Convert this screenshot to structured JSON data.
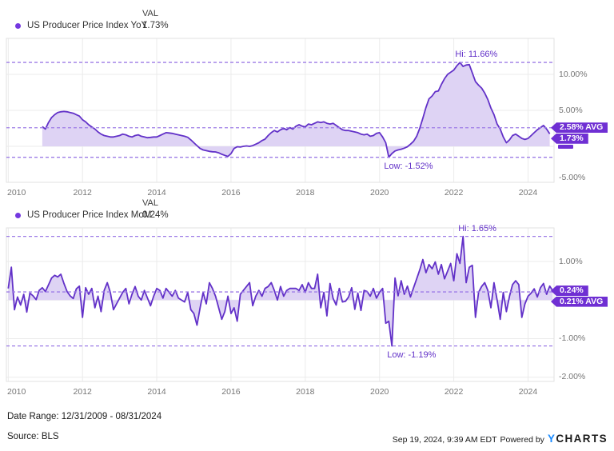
{
  "page": {
    "background": "#ffffff"
  },
  "colors": {
    "line": "#6231c8",
    "area_fill": "#ded3f4",
    "dashed": "#9d7ce6",
    "annotation_text": "#6231c8",
    "badge_bg": "#6f2fd3",
    "badge_text": "#ffffff",
    "dot": "#7438e0",
    "axis_text": "#757575",
    "grid": "#ebebeb",
    "plot_border": "#e2e2e2",
    "legend_text": "#333333",
    "footer_text": "#1a1a1a",
    "logo_y_color": "#1789ff",
    "logo_charts_color": "#1a1a1a"
  },
  "footer": {
    "date_range": "Date Range: 12/31/2009 - 08/31/2024",
    "source": "Source: BLS",
    "timestamp": "Sep 19, 2024, 9:39 AM EDT",
    "powered_by": "Powered by",
    "logo_y": "Y",
    "logo_rest": "CHARTS"
  },
  "chart_data": [
    {
      "type": "area",
      "series_name": "US Producer Price Index YoY",
      "legend": {
        "val_header": "VAL",
        "val_value": "1.73%"
      },
      "x_axis": {
        "unit": "year",
        "range": [
          2009.95,
          2024.7
        ],
        "ticks": [
          "2010",
          "2012",
          "2014",
          "2016",
          "2018",
          "2020",
          "2022",
          "2024"
        ],
        "tick_years": [
          2010,
          2012,
          2014,
          2016,
          2018,
          2020,
          2022,
          2024
        ]
      },
      "y_axis": {
        "range": [
          -5,
          15
        ],
        "gridlines": [
          10,
          5,
          0,
          -5
        ],
        "labels": [
          {
            "value": 10,
            "text": "10.00%"
          },
          {
            "value": 5,
            "text": "5.00%"
          },
          {
            "value": -5,
            "text": "-5.00%"
          }
        ]
      },
      "stats": {
        "hi": 11.66,
        "avg": 2.58,
        "low": -1.52
      },
      "annotations": {
        "hi": {
          "text": "Hi: 11.66%",
          "year": 2022.1667,
          "value": 11.66,
          "placement": "above"
        },
        "low": {
          "text": "Low: -1.52%",
          "year": 2020.25,
          "value": -1.52,
          "placement": "below"
        }
      },
      "badges": [
        {
          "text": "2.58% AVG",
          "anchor": 2.58
        },
        {
          "text": "1.73%"
        }
      ],
      "x_start_year": 2010.9167,
      "x_step_years": 0.083333,
      "values": [
        2.75,
        2.4,
        3.3,
        4.0,
        4.4,
        4.7,
        4.8,
        4.85,
        4.8,
        4.7,
        4.6,
        4.4,
        4.2,
        3.7,
        3.4,
        3.0,
        2.7,
        2.4,
        2.0,
        1.7,
        1.5,
        1.4,
        1.3,
        1.3,
        1.4,
        1.5,
        1.7,
        1.6,
        1.4,
        1.3,
        1.5,
        1.6,
        1.4,
        1.3,
        1.2,
        1.25,
        1.3,
        1.3,
        1.5,
        1.7,
        1.9,
        1.85,
        1.8,
        1.7,
        1.6,
        1.5,
        1.4,
        1.26,
        0.9,
        0.5,
        0.1,
        -0.3,
        -0.5,
        -0.6,
        -0.7,
        -0.75,
        -0.78,
        -0.9,
        -1.1,
        -1.26,
        -1.4,
        -1.0,
        -0.3,
        -0.05,
        -0.1,
        0.0,
        0.05,
        0.0,
        0.1,
        0.3,
        0.5,
        0.8,
        1.0,
        1.5,
        1.9,
        2.2,
        2.0,
        2.3,
        2.5,
        2.3,
        2.6,
        2.4,
        2.8,
        3.0,
        2.8,
        2.7,
        3.1,
        3.0,
        3.2,
        3.4,
        3.3,
        3.4,
        3.2,
        3.1,
        3.2,
        2.9,
        2.6,
        2.3,
        2.2,
        2.2,
        2.1,
        2.0,
        1.9,
        1.7,
        1.6,
        1.7,
        1.4,
        1.5,
        1.8,
        1.9,
        1.3,
        0.5,
        -1.52,
        -1.0,
        -0.65,
        -0.5,
        -0.4,
        -0.25,
        -0.05,
        0.3,
        0.7,
        1.4,
        2.5,
        3.9,
        5.4,
        6.6,
        7.0,
        7.6,
        7.7,
        8.6,
        9.4,
        10.0,
        10.3,
        10.6,
        11.2,
        11.66,
        11.1,
        11.3,
        11.35,
        10.2,
        9.0,
        8.5,
        8.1,
        7.4,
        6.5,
        5.3,
        4.4,
        3.1,
        2.4,
        1.3,
        0.5,
        0.9,
        1.5,
        1.7,
        1.4,
        1.1,
        0.95,
        1.1,
        1.5,
        1.9,
        2.3,
        2.6,
        2.9,
        2.4,
        1.73
      ]
    },
    {
      "type": "area",
      "series_name": "US Producer Price Index MoM",
      "legend": {
        "val_header": "VAL",
        "val_value": "0.24%"
      },
      "x_axis": {
        "unit": "year",
        "range": [
          2009.95,
          2024.7
        ],
        "ticks": [
          "2010",
          "2012",
          "2014",
          "2016",
          "2018",
          "2020",
          "2022",
          "2024"
        ],
        "tick_years": [
          2010,
          2012,
          2014,
          2016,
          2018,
          2020,
          2022,
          2024
        ]
      },
      "y_axis": {
        "range": [
          -2.11,
          1.87
        ],
        "gridlines": [
          1,
          0,
          -1,
          -2
        ],
        "labels": [
          {
            "value": 1,
            "text": "1.00%"
          },
          {
            "value": -1,
            "text": "-1.00%"
          },
          {
            "value": -2,
            "text": "-2.00%"
          }
        ]
      },
      "stats": {
        "hi": 1.65,
        "avg": 0.21,
        "low": -1.19
      },
      "annotations": {
        "hi": {
          "text": "Hi: 1.65%",
          "year": 2022.25,
          "value": 1.65,
          "placement": "above"
        },
        "low": {
          "text": "Low: -1.19%",
          "year": 2020.3333,
          "value": -1.19,
          "placement": "below"
        }
      },
      "badges": [
        {
          "text": "0.24%",
          "anchor": 0.24
        },
        {
          "text": "0.21% AVG"
        }
      ],
      "x_start_year": 2010.0,
      "x_step_years": 0.083333,
      "values": [
        0.3,
        0.85,
        -0.25,
        0.08,
        -0.13,
        0.15,
        -0.31,
        0.18,
        0.11,
        0.01,
        0.25,
        0.32,
        0.22,
        0.39,
        0.57,
        0.64,
        0.6,
        0.67,
        0.43,
        0.22,
        0.11,
        0.04,
        0.29,
        0.36,
        -0.45,
        0.32,
        0.15,
        0.3,
        -0.2,
        0.1,
        -0.3,
        0.25,
        0.45,
        0.2,
        -0.25,
        -0.1,
        0.05,
        0.2,
        0.3,
        -0.1,
        0.15,
        0.35,
        0.1,
        0.0,
        0.25,
        0.05,
        -0.15,
        0.1,
        0.3,
        0.25,
        0.05,
        0.3,
        0.2,
        0.1,
        0.25,
        0.05,
        0.0,
        -0.05,
        0.2,
        -0.25,
        -0.35,
        -0.65,
        -0.2,
        0.2,
        -0.1,
        0.45,
        0.3,
        0.1,
        -0.2,
        -0.5,
        -0.3,
        0.1,
        -0.35,
        -0.2,
        -0.55,
        0.15,
        0.25,
        0.35,
        0.45,
        -0.15,
        0.1,
        0.25,
        0.1,
        0.3,
        0.35,
        0.45,
        0.25,
        0.0,
        0.35,
        0.1,
        0.25,
        0.3,
        0.3,
        0.3,
        0.25,
        0.4,
        0.2,
        0.45,
        0.3,
        0.3,
        0.67,
        -0.2,
        0.2,
        -0.41,
        0.43,
        0.04,
        -0.13,
        0.3,
        -0.05,
        -0.03,
        0.08,
        0.32,
        -0.24,
        0.18,
        -0.27,
        0.25,
        0.22,
        0.1,
        0.3,
        0.05,
        0.2,
        0.3,
        -0.6,
        -0.55,
        -1.19,
        0.57,
        0.11,
        0.5,
        0.15,
        0.36,
        0.08,
        0.32,
        0.55,
        0.78,
        1.05,
        0.71,
        0.92,
        0.81,
        0.99,
        0.67,
        0.92,
        0.55,
        0.75,
        0.95,
        0.5,
        1.2,
        0.95,
        1.65,
        0.45,
        0.85,
        0.9,
        -0.45,
        0.2,
        0.35,
        0.45,
        0.25,
        -0.2,
        0.45,
        0.0,
        -0.5,
        0.2,
        -0.3,
        0.1,
        0.4,
        0.5,
        0.4,
        -0.45,
        -0.1,
        0.1,
        0.18,
        0.29,
        0.08,
        0.32,
        0.43,
        0.15,
        0.36,
        0.24
      ]
    }
  ]
}
